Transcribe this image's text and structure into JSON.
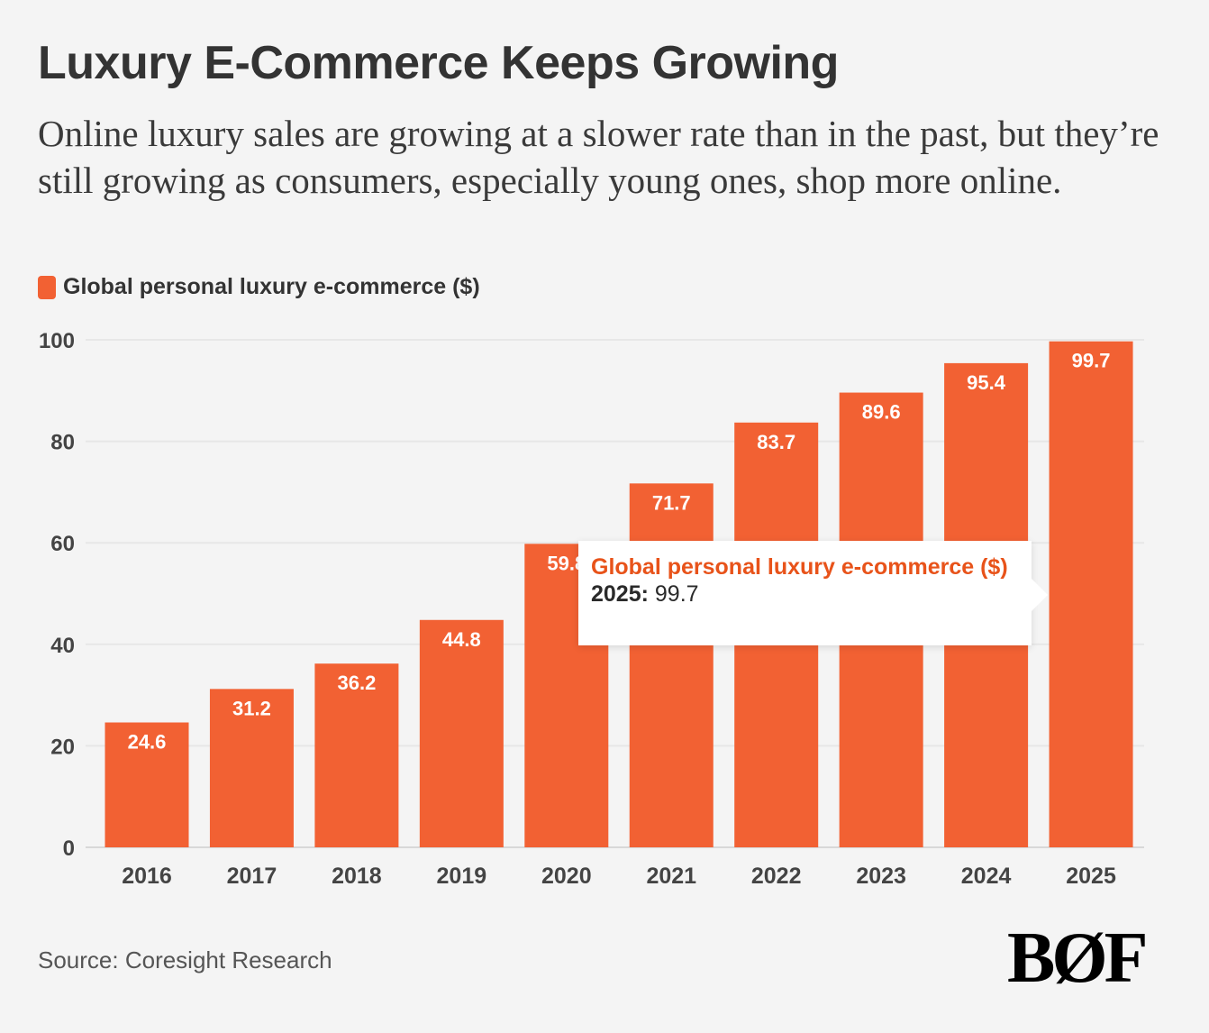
{
  "chart_data": {
    "type": "bar",
    "title": "Luxury E-Commerce Keeps Growing",
    "subtitle": "Online luxury sales are growing at a slower rate than in the past, but they’re still growing as consumers, especially young ones, shop more online.",
    "legend": {
      "label": "Global personal luxury e-commerce ($)",
      "placement": "top-left"
    },
    "categories": [
      "2016",
      "2017",
      "2018",
      "2019",
      "2020",
      "2021",
      "2022",
      "2023",
      "2024",
      "2025"
    ],
    "series": [
      {
        "name": "Global personal luxury e-commerce ($)",
        "values": [
          24.6,
          31.2,
          36.2,
          44.8,
          59.8,
          71.7,
          83.7,
          89.6,
          95.4,
          99.7
        ]
      }
    ],
    "yticks": [
      0,
      20,
      40,
      60,
      80,
      100
    ],
    "ylim": [
      0,
      100
    ],
    "grid": true,
    "xlabel": "",
    "ylabel": "",
    "color": "#f26133",
    "tooltip": {
      "series": "Global personal luxury e-commerce ($)",
      "category": "2025:",
      "value": "99.7"
    },
    "source": "Source: Coresight Research"
  },
  "logo": "BOF"
}
